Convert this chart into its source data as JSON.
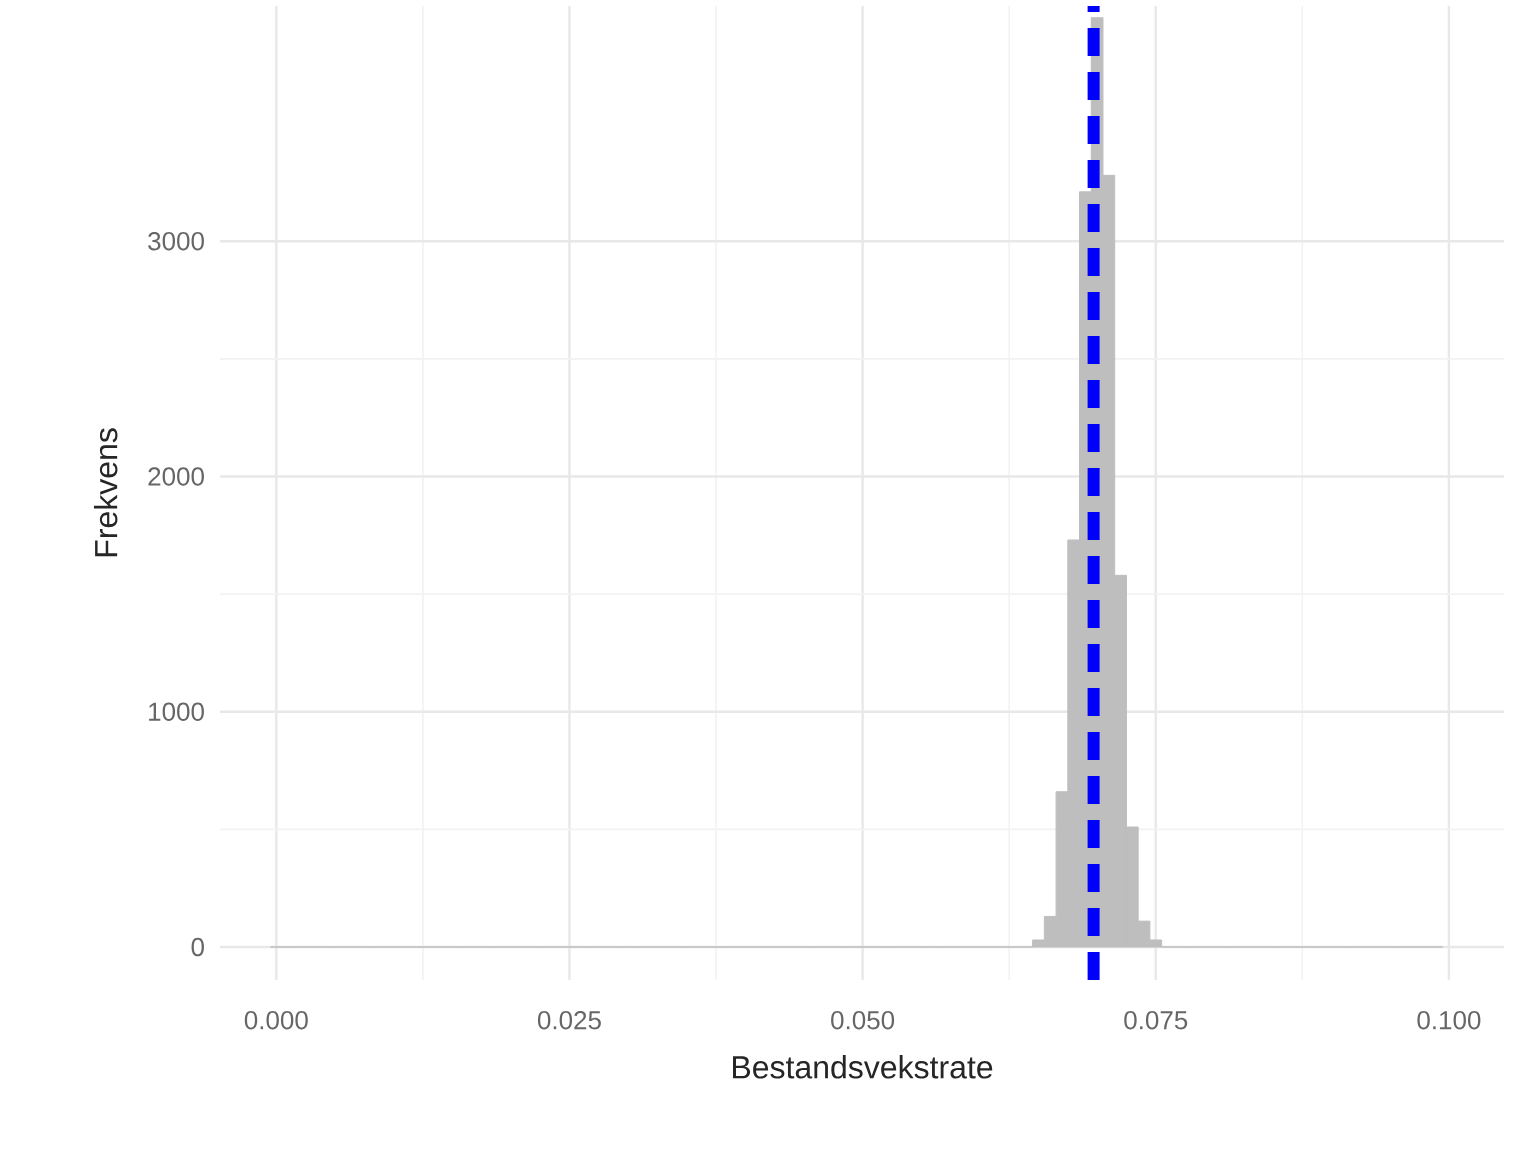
{
  "chart_data": {
    "type": "histogram",
    "xlabel": "Bestandsvekstrate",
    "ylabel": "Frekvens",
    "bins": [
      -0.0005,
      0.0005,
      0.0015,
      0.0025,
      0.0035,
      0.0045,
      0.0055,
      0.0065,
      0.0075,
      0.0085,
      0.0095,
      0.0105,
      0.0115,
      0.0125,
      0.0135,
      0.0145,
      0.0155,
      0.0165,
      0.0175,
      0.0185,
      0.0195,
      0.0205,
      0.0215,
      0.0225,
      0.0235,
      0.0245,
      0.0255,
      0.0265,
      0.0275,
      0.0285,
      0.0295,
      0.0305,
      0.0315,
      0.0325,
      0.0335,
      0.0345,
      0.0355,
      0.0365,
      0.0375,
      0.0385,
      0.0395,
      0.0405,
      0.0415,
      0.0425,
      0.0435,
      0.0445,
      0.0455,
      0.0465,
      0.0475,
      0.0485,
      0.0495,
      0.0505,
      0.0515,
      0.0525,
      0.0535,
      0.0545,
      0.0555,
      0.0565,
      0.0575,
      0.0585,
      0.0595,
      0.0605,
      0.0615,
      0.0625,
      0.0635,
      0.0645,
      0.0655,
      0.0665,
      0.0675,
      0.0685,
      0.0695,
      0.0705,
      0.0715,
      0.0725,
      0.0735,
      0.0745,
      0.0755,
      0.0765,
      0.0775,
      0.0785,
      0.0795,
      0.0805,
      0.0815,
      0.0825,
      0.0835,
      0.0845,
      0.0855,
      0.0865,
      0.0875,
      0.0885,
      0.0895,
      0.0905,
      0.0915,
      0.0925,
      0.0935,
      0.0945,
      0.0955,
      0.0965,
      0.0975,
      0.0985,
      0.0995
    ],
    "values": [
      0,
      0,
      0,
      0,
      0,
      0,
      0,
      0,
      0,
      0,
      0,
      0,
      0,
      0,
      0,
      0,
      0,
      0,
      0,
      0,
      0,
      0,
      0,
      0,
      0,
      0,
      0,
      0,
      0,
      0,
      0,
      0,
      0,
      0,
      0,
      0,
      0,
      0,
      0,
      0,
      0,
      0,
      0,
      0,
      0,
      0,
      0,
      0,
      0,
      0,
      0,
      0,
      0,
      0,
      0,
      0,
      0,
      0,
      0,
      0,
      0,
      0,
      0,
      0,
      0,
      30,
      130,
      660,
      1730,
      3210,
      3950,
      3280,
      1580,
      510,
      110,
      30,
      0,
      0,
      0,
      0,
      0,
      0,
      0,
      0,
      0,
      0,
      0,
      0,
      0,
      0,
      0,
      0,
      0,
      0,
      0,
      0,
      0,
      0,
      0,
      0
    ],
    "color": "#bebebe",
    "xlim": [
      -0.0048,
      0.1047
    ],
    "ylim": [
      -140,
      4000
    ],
    "xticks": [
      {
        "value": 0,
        "label": "0.000"
      },
      {
        "value": 0.025,
        "label": "0.025"
      },
      {
        "value": 0.05,
        "label": "0.050"
      },
      {
        "value": 0.075,
        "label": "0.075"
      },
      {
        "value": 0.1,
        "label": "0.100"
      }
    ],
    "yticks": [
      0,
      1000,
      2000,
      3000
    ],
    "grid": true,
    "ref_lines": [
      {
        "axis": "x",
        "value": 0.0697,
        "color": "#0000ff",
        "line_style": "dashed"
      }
    ]
  }
}
